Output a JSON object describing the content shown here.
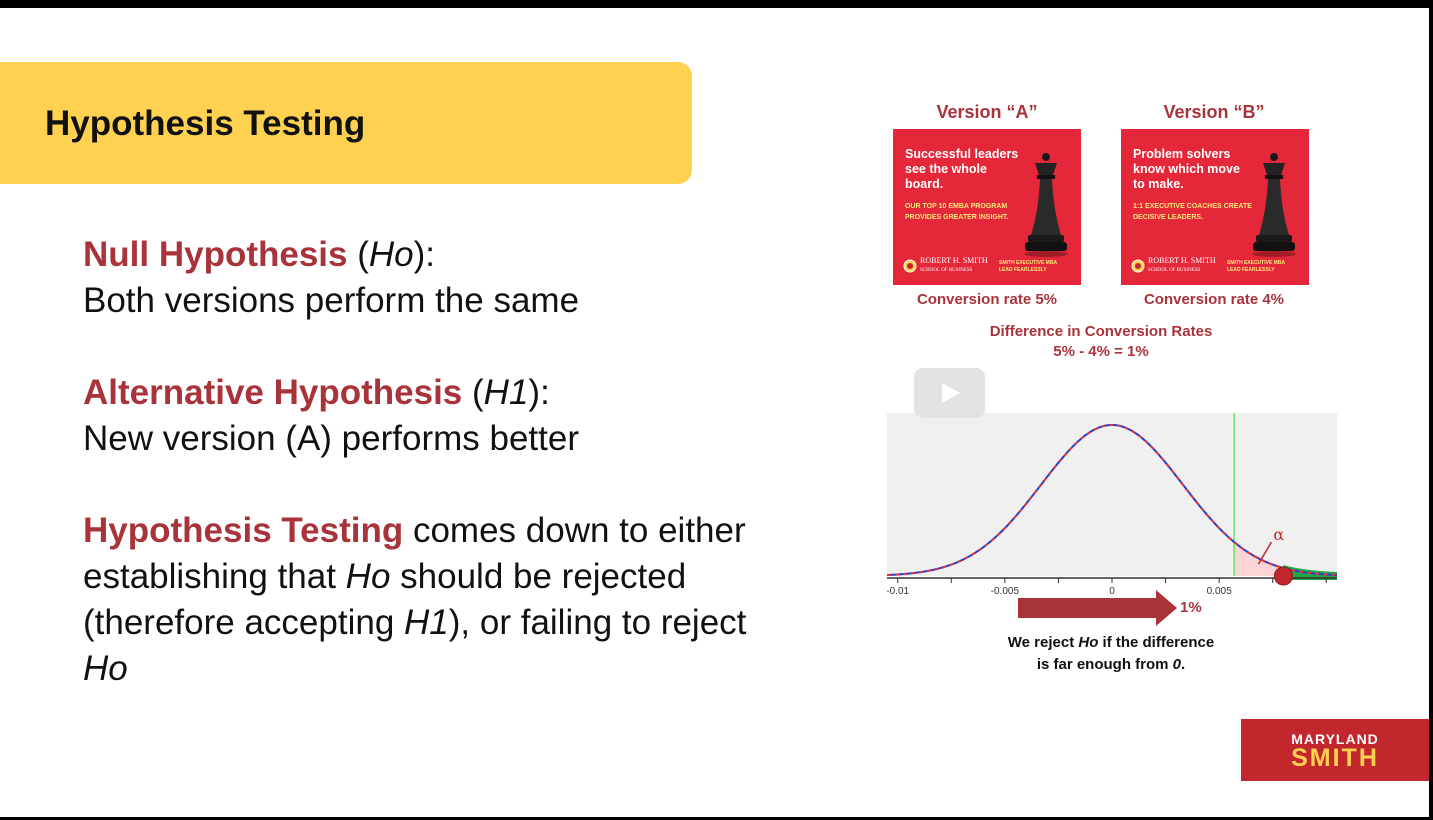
{
  "slide": {
    "title": "Hypothesis Testing"
  },
  "body": {
    "null": {
      "term": "Null Hypothesis",
      "open": " (",
      "sym": "Ho",
      "close": "):",
      "desc": "Both versions perform the same"
    },
    "alt": {
      "term": "Alternative Hypothesis",
      "open": " (",
      "sym": "H1",
      "close": "):",
      "desc": "New version (A) performs better"
    },
    "testing": {
      "term": "Hypothesis Testing",
      "t1": " comes down to either establishing that ",
      "sym1": "Ho",
      "t2": " should be rejected (therefore accepting ",
      "sym2": "H1",
      "t3": "), or failing to reject ",
      "sym3": "Ho"
    }
  },
  "versions": [
    {
      "label": "Version “A”",
      "headline": "Successful leaders see the whole board.",
      "subline": "OUR TOP 10 EMBA PROGRAM PROVIDES GREATER INSIGHT.",
      "logo_line1": "ROBERT H. SMITH",
      "logo_line2": "SCHOOL OF BUSINESS",
      "tag1": "SMITH EXECUTIVE MBA",
      "tag2": "LEAD FEARLESSLY",
      "conversion": "Conversion rate 5%"
    },
    {
      "label": "Version “B”",
      "headline": "Problem solvers know which move to make.",
      "subline": "1:1 EXECUTIVE COACHES CREATE DECISIVE LEADERS.",
      "logo_line1": "ROBERT H. SMITH",
      "logo_line2": "SCHOOL OF BUSINESS",
      "tag1": "SMITH EXECUTIVE MBA",
      "tag2": "LEAD FEARLESSLY",
      "conversion": "Conversion rate 4%"
    }
  ],
  "difference": {
    "line1": "Difference in Conversion Rates",
    "line2": "5% - 4% = 1%"
  },
  "chart_data": {
    "type": "line",
    "title": "",
    "xlabel": "",
    "ylabel": "",
    "x_ticks": [
      -0.01,
      -0.005,
      0,
      0.005
    ],
    "x_tick_labels": [
      "-0.01",
      "-0.005",
      "0",
      "0.005"
    ],
    "xlim": [
      -0.0105,
      0.0105
    ],
    "distribution": {
      "kind": "normal",
      "mean": 0,
      "sd": 0.0033
    },
    "critical_value": 0.0057,
    "observed_difference": 0.008,
    "alpha_label": "α",
    "grid": false,
    "colors": {
      "curve_primary": "#1c3fd8",
      "curve_secondary": "#e0343a",
      "critical_line": "#67e467",
      "rejection_region": "#fbd5d5",
      "tail_fill": "#22a844",
      "marker": "#c1272d",
      "background": "#f0f0f0"
    }
  },
  "arrow": {
    "label": "1%"
  },
  "reject_note": {
    "t1": "We reject ",
    "sym": "Ho",
    "t2": " if the difference",
    "t3": "is far enough from ",
    "zero": "0",
    "t4": "."
  },
  "video": {
    "icon": "play-icon"
  },
  "logo": {
    "line1": "MARYLAND",
    "line2": "SMITH"
  },
  "colors": {
    "accent": "#a9333a",
    "title_bar": "#fed150",
    "ad_red": "#e42739",
    "logo_red": "#c1272d",
    "logo_gold": "#fed150"
  }
}
